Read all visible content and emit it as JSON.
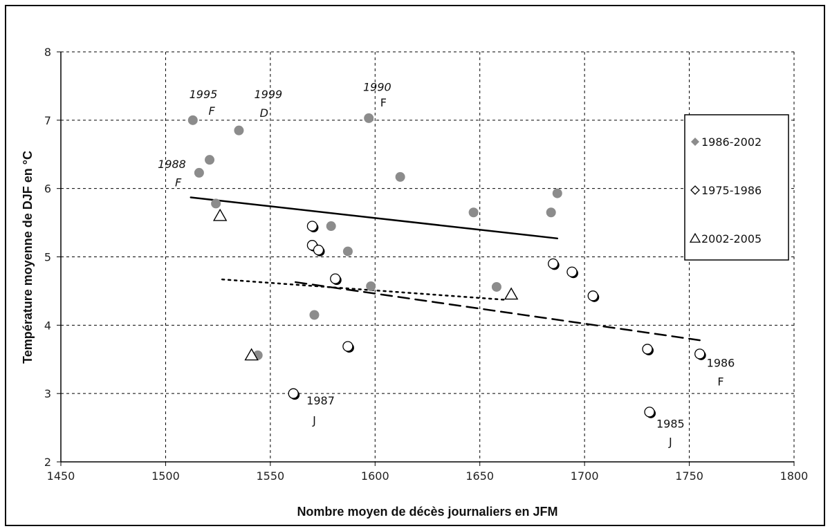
{
  "chart_data": {
    "type": "scatter",
    "title": "",
    "xlabel": "Nombre moyen de décès journaliers en JFM",
    "ylabel": "Température moyenne de DJF en °C",
    "xlim": [
      1450,
      1800
    ],
    "ylim": [
      2,
      8
    ],
    "x_ticks": [
      1450,
      1500,
      1550,
      1600,
      1650,
      1700,
      1750,
      1800
    ],
    "y_ticks": [
      2,
      3,
      4,
      5,
      6,
      7,
      8
    ],
    "grid": true,
    "legend_position": "right",
    "series": [
      {
        "name": "1986-2002",
        "marker": "filled-circle",
        "color": "#8c8c8c",
        "points": [
          {
            "x": 1513,
            "y": 7.0
          },
          {
            "x": 1516,
            "y": 6.23
          },
          {
            "x": 1521,
            "y": 6.42
          },
          {
            "x": 1524,
            "y": 5.78
          },
          {
            "x": 1535,
            "y": 6.85
          },
          {
            "x": 1544,
            "y": 3.56
          },
          {
            "x": 1571,
            "y": 4.15
          },
          {
            "x": 1579,
            "y": 5.45
          },
          {
            "x": 1587,
            "y": 5.08
          },
          {
            "x": 1597,
            "y": 7.03
          },
          {
            "x": 1598,
            "y": 4.57
          },
          {
            "x": 1612,
            "y": 6.17
          },
          {
            "x": 1647,
            "y": 5.65
          },
          {
            "x": 1658,
            "y": 4.56
          },
          {
            "x": 1684,
            "y": 5.65
          },
          {
            "x": 1687,
            "y": 5.93
          }
        ]
      },
      {
        "name": "1975-1986",
        "marker": "half-filled-circle",
        "color": "#000000",
        "points": [
          {
            "x": 1561,
            "y": 3.0
          },
          {
            "x": 1570,
            "y": 5.45
          },
          {
            "x": 1570,
            "y": 5.17
          },
          {
            "x": 1573,
            "y": 5.1
          },
          {
            "x": 1581,
            "y": 4.68
          },
          {
            "x": 1587,
            "y": 3.69
          },
          {
            "x": 1685,
            "y": 4.9
          },
          {
            "x": 1694,
            "y": 4.78
          },
          {
            "x": 1704,
            "y": 4.43
          },
          {
            "x": 1730,
            "y": 3.65
          },
          {
            "x": 1731,
            "y": 2.73
          },
          {
            "x": 1755,
            "y": 3.58
          }
        ]
      },
      {
        "name": "2002-2005",
        "marker": "open-triangle",
        "color": "#000000",
        "points": [
          {
            "x": 1526,
            "y": 5.6
          },
          {
            "x": 1541,
            "y": 3.56
          },
          {
            "x": 1665,
            "y": 4.45
          }
        ]
      }
    ],
    "trendlines": [
      {
        "series": "1986-2002",
        "style": "solid",
        "from": [
          1512,
          5.87
        ],
        "to": [
          1687,
          5.27
        ]
      },
      {
        "series": "1975-1986",
        "style": "dashed",
        "from": [
          1562,
          4.63
        ],
        "to": [
          1755,
          3.78
        ]
      },
      {
        "series": "2002-2005",
        "style": "dotted",
        "from": [
          1527,
          4.67
        ],
        "to": [
          1663,
          4.37
        ]
      }
    ],
    "annotations": [
      {
        "x": 1518,
        "y": 7.32,
        "text": "1995",
        "italic": true
      },
      {
        "x": 1522,
        "y": 7.08,
        "text": "F",
        "italic": true
      },
      {
        "x": 1549,
        "y": 7.32,
        "text": "1999",
        "italic": true
      },
      {
        "x": 1547,
        "y": 7.05,
        "text": "D",
        "italic": true
      },
      {
        "x": 1601,
        "y": 7.43,
        "text": "1990",
        "italic": true
      },
      {
        "x": 1604,
        "y": 7.2,
        "text": "F",
        "italic": false
      },
      {
        "x": 1503,
        "y": 6.3,
        "text": "1988",
        "italic": true
      },
      {
        "x": 1506,
        "y": 6.03,
        "text": "F",
        "italic": true
      },
      {
        "x": 1574,
        "y": 2.84,
        "text": "1987",
        "italic": false
      },
      {
        "x": 1571,
        "y": 2.55,
        "text": "J",
        "italic": false
      },
      {
        "x": 1741,
        "y": 2.5,
        "text": "1985",
        "italic": false
      },
      {
        "x": 1741,
        "y": 2.24,
        "text": "J",
        "italic": false
      },
      {
        "x": 1765,
        "y": 3.39,
        "text": "1986",
        "italic": false
      },
      {
        "x": 1765,
        "y": 3.12,
        "text": "F",
        "italic": false
      }
    ]
  }
}
